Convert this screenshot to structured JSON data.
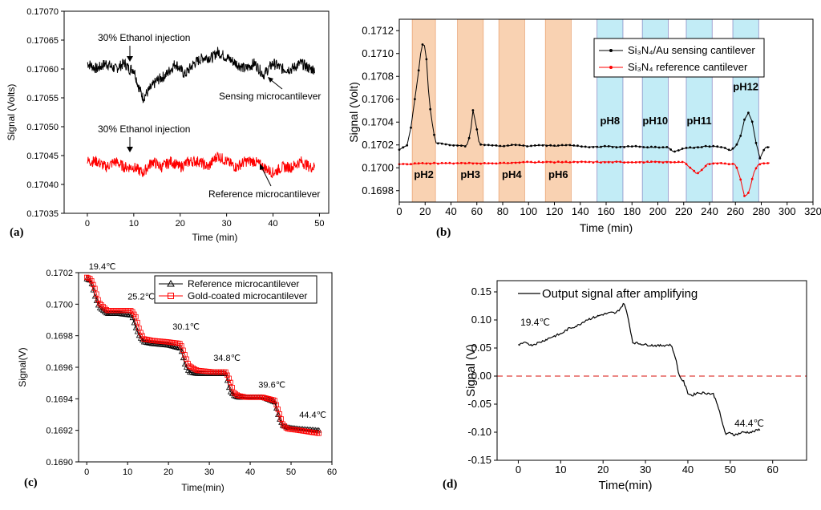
{
  "chart_data": [
    {
      "id": "a",
      "type": "line",
      "panel_label": "(a)",
      "xlabel": "Time (min)",
      "ylabel": "Signal (Volts)",
      "xlim": [
        -5,
        52
      ],
      "ylim": [
        0.17035,
        0.1707
      ],
      "xticks": [
        0,
        10,
        20,
        30,
        40,
        50
      ],
      "yticks": [
        "0.17035",
        "0.17040",
        "0.17045",
        "0.17050",
        "0.17055",
        "0.17060",
        "0.17065",
        "0.17070"
      ],
      "series": [
        {
          "name": "Sensing microcantilever",
          "color": "#000000",
          "x": [
            0,
            2,
            4,
            6,
            8,
            9,
            10,
            11,
            12,
            13,
            15,
            17,
            19,
            21,
            23,
            25,
            27,
            28,
            30,
            32,
            34,
            36,
            38,
            40,
            42,
            44,
            46,
            48,
            49
          ],
          "y": [
            0.17061,
            0.1706,
            0.17061,
            0.1706,
            0.17061,
            0.1706,
            0.1706,
            0.17057,
            0.17055,
            0.17056,
            0.17058,
            0.17059,
            0.17061,
            0.17059,
            0.17061,
            0.17062,
            0.17062,
            0.17063,
            0.17062,
            0.17061,
            0.1706,
            0.17061,
            0.17059,
            0.17061,
            0.1706,
            0.1706,
            0.17061,
            0.1706,
            0.1706
          ]
        },
        {
          "name": "Reference microcantilever",
          "color": "#ff0000",
          "x": [
            0,
            2,
            4,
            6,
            8,
            10,
            12,
            14,
            16,
            18,
            20,
            22,
            24,
            26,
            28,
            30,
            32,
            34,
            36,
            38,
            40,
            42,
            44,
            46,
            48,
            49
          ],
          "y": [
            0.17044,
            0.17044,
            0.17043,
            0.17044,
            0.17043,
            0.17043,
            0.17042,
            0.17044,
            0.17043,
            0.17044,
            0.17043,
            0.17044,
            0.17044,
            0.17043,
            0.17045,
            0.17044,
            0.17043,
            0.17044,
            0.17044,
            0.17043,
            0.17042,
            0.17043,
            0.17043,
            0.17044,
            0.17043,
            0.17043
          ]
        }
      ],
      "annotations": [
        "30% Ethanol injection",
        "Sensing microcantilever",
        "30% Ethanol injection",
        "Reference microcantilever"
      ]
    },
    {
      "id": "b",
      "type": "line",
      "panel_label": "(b)",
      "xlabel": "Time (min)",
      "ylabel": "Signal (Volt)",
      "xlim": [
        0,
        320
      ],
      "ylim": [
        0.1697,
        0.1713
      ],
      "xticks": [
        0,
        20,
        40,
        60,
        80,
        100,
        120,
        140,
        160,
        180,
        200,
        220,
        240,
        260,
        280,
        300,
        320
      ],
      "yticks": [
        "0.1698",
        "0.1700",
        "0.1702",
        "0.1704",
        "0.1706",
        "0.1708",
        "0.1710",
        "0.1712"
      ],
      "bands": [
        {
          "label": "pH2",
          "from": 10,
          "to": 28,
          "color": "#f9d2b2"
        },
        {
          "label": "pH3",
          "from": 45,
          "to": 65,
          "color": "#f9d2b2"
        },
        {
          "label": "pH4",
          "from": 77,
          "to": 97,
          "color": "#f9d2b2"
        },
        {
          "label": "pH6",
          "from": 113,
          "to": 133,
          "color": "#f9d2b2"
        },
        {
          "label": "pH8",
          "from": 153,
          "to": 173,
          "color": "#c2ecf6"
        },
        {
          "label": "pH10",
          "from": 188,
          "to": 208,
          "color": "#c2ecf6"
        },
        {
          "label": "pH11",
          "from": 222,
          "to": 242,
          "color": "#c2ecf6"
        },
        {
          "label": "pH12",
          "from": 258,
          "to": 278,
          "color": "#c2ecf6"
        }
      ],
      "legend": {
        "placement": "top-right"
      },
      "series": [
        {
          "name": "Si3N4/Au sensing cantilever",
          "legend_label": "Si₃N₄/Au sensing cantilever",
          "color": "#000000",
          "x": [
            0,
            6,
            9,
            12,
            15,
            17,
            19,
            21,
            23,
            25,
            28,
            40,
            52,
            55,
            57,
            59,
            62,
            70,
            80,
            90,
            100,
            110,
            120,
            130,
            140,
            150,
            160,
            170,
            180,
            190,
            200,
            208,
            212,
            220,
            230,
            240,
            250,
            256,
            260,
            264,
            267,
            270,
            273,
            276,
            279,
            283,
            287
          ],
          "y": [
            0.17016,
            0.1702,
            0.17035,
            0.1706,
            0.17085,
            0.17105,
            0.17111,
            0.17095,
            0.1706,
            0.17042,
            0.17022,
            0.1702,
            0.17019,
            0.1703,
            0.1705,
            0.1704,
            0.1702,
            0.1702,
            0.17019,
            0.1702,
            0.17019,
            0.1702,
            0.17019,
            0.1702,
            0.17019,
            0.17018,
            0.17019,
            0.17018,
            0.17019,
            0.17018,
            0.17018,
            0.17018,
            0.17014,
            0.17017,
            0.17018,
            0.17019,
            0.17018,
            0.17015,
            0.17018,
            0.17028,
            0.17042,
            0.17048,
            0.1704,
            0.17022,
            0.17008,
            0.17018,
            0.17018
          ]
        },
        {
          "name": "Si3N4 reference cantilever",
          "legend_label": "Si₃N₄ reference cantilever",
          "color": "#ff0000",
          "x": [
            0,
            20,
            40,
            60,
            80,
            100,
            120,
            140,
            160,
            180,
            200,
            220,
            225,
            230,
            234,
            238,
            242,
            250,
            260,
            264,
            267,
            270,
            272,
            274,
            277,
            280,
            287
          ],
          "y": [
            0.17003,
            0.17004,
            0.17004,
            0.17004,
            0.17004,
            0.17005,
            0.17005,
            0.17005,
            0.17005,
            0.17005,
            0.17005,
            0.17005,
            0.17,
            0.16995,
            0.16998,
            0.17003,
            0.17004,
            0.17004,
            0.17003,
            0.1699,
            0.16975,
            0.16978,
            0.16985,
            0.16995,
            0.17002,
            0.17004,
            0.17004
          ]
        }
      ]
    },
    {
      "id": "c",
      "type": "line",
      "panel_label": "(c)",
      "xlabel": "Time(min)",
      "ylabel": "Signal(V)",
      "xlim": [
        -2,
        60
      ],
      "ylim": [
        0.169,
        0.1702
      ],
      "xticks": [
        0,
        10,
        20,
        30,
        40,
        50,
        60
      ],
      "yticks": [
        "0.1690",
        "0.1692",
        "0.1694",
        "0.1696",
        "0.1698",
        "0.1700",
        "0.1702"
      ],
      "legend": {
        "placement": "top-right"
      },
      "temperature_labels": [
        "19.4℃",
        "25.2℃",
        "30.1℃",
        "34.8℃",
        "39.6℃",
        "44.4℃"
      ],
      "series": [
        {
          "name": "Reference microcantilever",
          "color": "#000000",
          "marker": "triangle",
          "x": [
            0,
            1,
            2,
            3,
            5,
            8,
            11,
            12,
            13,
            14,
            16,
            20,
            23,
            24,
            25,
            27,
            31,
            34,
            35,
            36,
            37,
            39,
            43,
            46,
            47,
            48,
            49,
            52,
            57
          ],
          "y": [
            0.17016,
            0.17015,
            0.17005,
            0.16998,
            0.16994,
            0.16994,
            0.16993,
            0.16985,
            0.16979,
            0.16976,
            0.16975,
            0.16974,
            0.16972,
            0.16962,
            0.16957,
            0.16956,
            0.16956,
            0.16956,
            0.16945,
            0.16942,
            0.16941,
            0.16941,
            0.16941,
            0.16938,
            0.16928,
            0.16923,
            0.16922,
            0.16921,
            0.1692
          ]
        },
        {
          "name": "Gold-coated microcantilever",
          "color": "#ff0000",
          "marker": "square",
          "x": [
            0,
            1,
            2,
            3,
            5,
            8,
            11,
            12,
            13,
            14,
            16,
            20,
            23,
            24,
            25,
            27,
            31,
            34,
            35,
            36,
            37,
            39,
            43,
            46,
            47,
            48,
            49,
            52,
            57
          ],
          "y": [
            0.17017,
            0.17016,
            0.1701,
            0.17001,
            0.16996,
            0.16996,
            0.16996,
            0.16992,
            0.16983,
            0.16978,
            0.16977,
            0.16976,
            0.16975,
            0.16968,
            0.16961,
            0.16958,
            0.16957,
            0.16957,
            0.16952,
            0.16944,
            0.16942,
            0.16941,
            0.16941,
            0.16939,
            0.16932,
            0.16924,
            0.16921,
            0.1692,
            0.16918
          ]
        }
      ]
    },
    {
      "id": "d",
      "type": "line",
      "panel_label": "(d)",
      "xlabel": "Time(min)",
      "ylabel": "Signal (V)",
      "xlim": [
        -5,
        68
      ],
      "ylim": [
        -0.15,
        0.17
      ],
      "xticks": [
        0,
        10,
        20,
        30,
        40,
        50,
        60
      ],
      "yticks": [
        "-0.15",
        "-0.10",
        "-0.05",
        "0.00",
        "0.05",
        "0.10",
        "0.15"
      ],
      "reference_line": {
        "y": 0,
        "color": "#e0403c",
        "style": "dashed"
      },
      "legend": {
        "placement": "top"
      },
      "temperature_labels": [
        "19.4℃",
        "44.4℃"
      ],
      "series": [
        {
          "name": "Output signal after amplifying",
          "color": "#000000",
          "x": [
            0,
            2,
            3,
            5,
            8,
            10,
            12,
            14,
            16,
            18,
            20,
            22,
            23,
            24,
            25,
            26,
            27,
            30,
            33,
            36,
            37,
            38,
            39,
            40,
            41,
            42,
            44,
            46,
            47,
            48,
            49,
            50,
            51,
            53,
            55,
            57
          ],
          "y": [
            0.055,
            0.06,
            0.055,
            0.06,
            0.07,
            0.075,
            0.085,
            0.09,
            0.1,
            0.105,
            0.11,
            0.113,
            0.112,
            0.12,
            0.13,
            0.1,
            0.06,
            0.056,
            0.054,
            0.056,
            0.035,
            0.0,
            -0.01,
            -0.03,
            -0.035,
            -0.03,
            -0.03,
            -0.032,
            -0.05,
            -0.08,
            -0.105,
            -0.1,
            -0.105,
            -0.1,
            -0.1,
            -0.095
          ]
        }
      ]
    }
  ]
}
